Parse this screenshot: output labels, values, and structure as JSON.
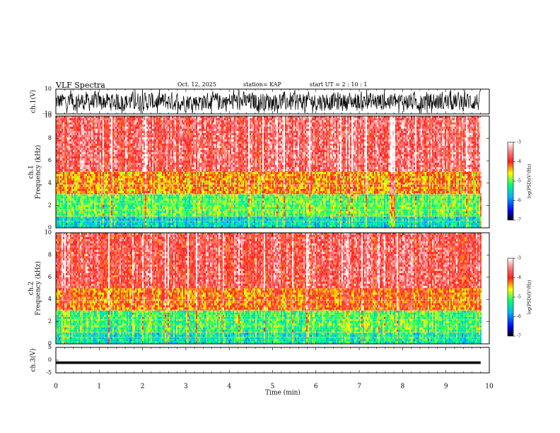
{
  "header": {
    "title": "VLF Spectra",
    "date": "Oct. 12, 2025",
    "station": "station= KAP",
    "start_ut": "start  UT =   2  : 10 : 1"
  },
  "chart_data": [
    {
      "type": "line",
      "name": "ch1-waveform",
      "ylabel": "ch.1(V)",
      "ylim": [
        -10,
        10
      ],
      "yticks": [
        "10",
        "-10"
      ],
      "xlim": [
        0,
        9.8
      ],
      "data_extent_min": 9.8,
      "description_of_signal": "noisy waveform, amplitude roughly -8 to +8 V"
    },
    {
      "type": "heatmap",
      "name": "ch1-spectrogram",
      "ylabel": "ch.1 Frequency (kHz)",
      "ylim": [
        0,
        10
      ],
      "yticks": [
        "0",
        "2",
        "4",
        "6",
        "8",
        "10"
      ],
      "colorbar": {
        "label": "log(PSD)(V²/Hz)",
        "ticks": [
          "-3",
          "-4",
          "-5",
          "-6",
          "-7"
        ],
        "range": [
          -7,
          -3
        ]
      },
      "bands": [
        {
          "from_khz": 0,
          "to_khz": 1,
          "level": -5.5
        },
        {
          "from_khz": 1,
          "to_khz": 3,
          "level": -5.0
        },
        {
          "from_khz": 3,
          "to_khz": 5,
          "level": -4.3
        },
        {
          "from_khz": 5,
          "to_khz": 10,
          "level": -3.6
        }
      ]
    },
    {
      "type": "heatmap",
      "name": "ch2-spectrogram",
      "ylabel": "ch.2 Frequency (kHz)",
      "ylim": [
        0,
        10
      ],
      "yticks": [
        "0",
        "2",
        "4",
        "6",
        "8",
        "10"
      ],
      "colorbar": {
        "label": "log(PSD)(V²/Hz)",
        "ticks": [
          "-3",
          "-4",
          "-5",
          "-6",
          "-7"
        ],
        "range": [
          -7,
          -3
        ]
      },
      "bands": [
        {
          "from_khz": 0,
          "to_khz": 1,
          "level": -5.4
        },
        {
          "from_khz": 1,
          "to_khz": 3,
          "level": -5.1
        },
        {
          "from_khz": 3,
          "to_khz": 5,
          "level": -4.2
        },
        {
          "from_khz": 5,
          "to_khz": 10,
          "level": -3.7
        }
      ]
    },
    {
      "type": "line",
      "name": "ch3-waveform",
      "ylabel": "ch.3(V)",
      "ylim": [
        -5,
        5
      ],
      "yticks": [
        "5",
        "0",
        "-5"
      ],
      "level_v": -1,
      "band_half_width_v": 0.5,
      "xlabel": "Time (min)",
      "xlim": [
        0,
        10
      ],
      "xticks": [
        "0",
        "1",
        "2",
        "3",
        "4",
        "5",
        "6",
        "7",
        "8",
        "9",
        "10"
      ]
    }
  ]
}
